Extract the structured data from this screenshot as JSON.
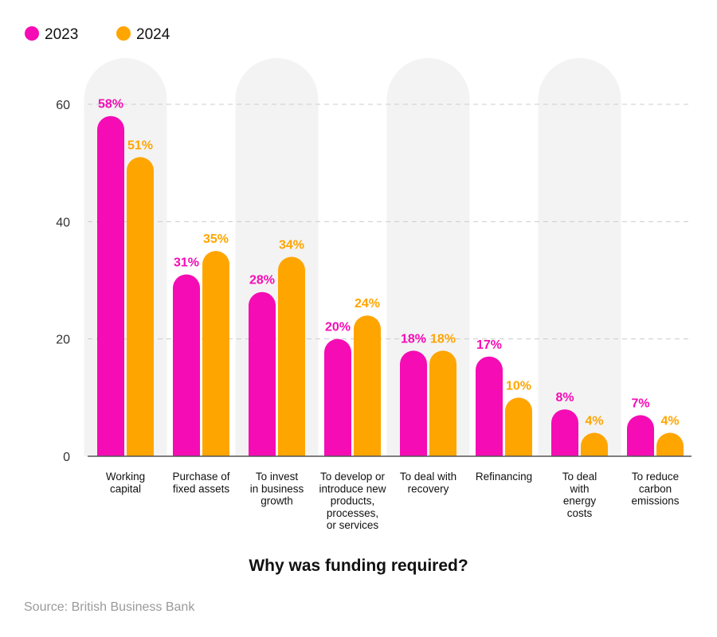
{
  "chart_data": {
    "type": "bar",
    "categories": [
      [
        "Working",
        "capital"
      ],
      [
        "Purchase of",
        "fixed assets"
      ],
      [
        "To invest",
        "in business",
        "growth"
      ],
      [
        "To develop or",
        "introduce new",
        "products,",
        "processes,",
        "or services"
      ],
      [
        "To deal with",
        "recovery"
      ],
      [
        "Refinancing"
      ],
      [
        "To deal",
        "with",
        "energy",
        "costs"
      ],
      [
        "To reduce",
        "carbon",
        "emissions"
      ]
    ],
    "series": [
      {
        "name": "2023",
        "color": "#f50cb5",
        "values": [
          58,
          31,
          28,
          20,
          18,
          17,
          8,
          7
        ],
        "labels": [
          "58%",
          "31%",
          "28%",
          "20%",
          "18%",
          "17%",
          "8%",
          "7%"
        ]
      },
      {
        "name": "2024",
        "color": "#ffa500",
        "values": [
          51,
          35,
          34,
          24,
          18,
          10,
          4,
          4
        ],
        "labels": [
          "51%",
          "35%",
          "34%",
          "24%",
          "18%",
          "10%",
          "4%",
          "4%"
        ]
      }
    ],
    "yticks": [
      "0",
      "20",
      "40",
      "60"
    ],
    "ylim": [
      0,
      60
    ],
    "xlabel": "Why was funding required?",
    "ylabel": "",
    "grid": true,
    "legend": "top-left",
    "highlight_band_color": "#f3f3f3"
  },
  "source": "Source: British Business Bank"
}
